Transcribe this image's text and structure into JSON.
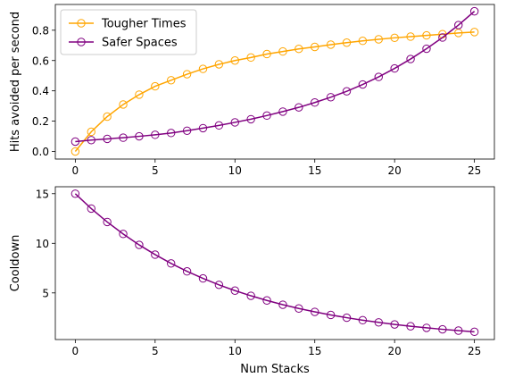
{
  "chart_data": [
    {
      "type": "line",
      "ylabel": "Hits avoided per second",
      "xlabel": "",
      "x": [
        0,
        1,
        2,
        3,
        4,
        5,
        6,
        7,
        8,
        9,
        10,
        11,
        12,
        13,
        14,
        15,
        16,
        17,
        18,
        19,
        20,
        21,
        22,
        23,
        24,
        25
      ],
      "xlim": [
        -1.25,
        26.25
      ],
      "ylim": [
        -0.05,
        0.97
      ],
      "xticks": [
        0,
        5,
        10,
        15,
        20,
        25
      ],
      "yticks": [
        0.0,
        0.2,
        0.4,
        0.6,
        0.8
      ],
      "ytick_labels": [
        "0.0",
        "0.2",
        "0.4",
        "0.6",
        "0.8"
      ],
      "legend": "top-left",
      "grid": false,
      "series": [
        {
          "name": "Tougher Times",
          "color": "#ffa500",
          "marker": "hollow-circle",
          "values": [
            0.0,
            0.13,
            0.23,
            0.31,
            0.375,
            0.43,
            0.47,
            0.51,
            0.545,
            0.575,
            0.6,
            0.62,
            0.643,
            0.66,
            0.677,
            0.69,
            0.705,
            0.718,
            0.73,
            0.74,
            0.75,
            0.758,
            0.766,
            0.774,
            0.782,
            0.788
          ]
        },
        {
          "name": "Safer Spaces",
          "color": "#800080",
          "marker": "hollow-circle",
          "values": [
            0.065,
            0.075,
            0.083,
            0.091,
            0.1,
            0.11,
            0.122,
            0.137,
            0.154,
            0.172,
            0.192,
            0.213,
            0.237,
            0.263,
            0.291,
            0.323,
            0.358,
            0.397,
            0.442,
            0.492,
            0.548,
            0.61,
            0.678,
            0.752,
            0.834,
            0.925
          ]
        }
      ]
    },
    {
      "type": "line",
      "ylabel": "Cooldown",
      "xlabel": "Num Stacks",
      "x": [
        0,
        1,
        2,
        3,
        4,
        5,
        6,
        7,
        8,
        9,
        10,
        11,
        12,
        13,
        14,
        15,
        16,
        17,
        18,
        19,
        20,
        21,
        22,
        23,
        24,
        25
      ],
      "xlim": [
        -1.25,
        26.25
      ],
      "ylim": [
        0.3,
        15.7
      ],
      "xticks": [
        0,
        5,
        10,
        15,
        20,
        25
      ],
      "yticks": [
        5,
        10,
        15
      ],
      "ytick_labels": [
        "5",
        "10",
        "15"
      ],
      "legend": "none",
      "grid": false,
      "series": [
        {
          "name": "",
          "color": "#800080",
          "marker": "hollow-circle",
          "values": [
            15.0,
            13.5,
            12.15,
            10.94,
            9.84,
            8.86,
            7.97,
            7.17,
            6.46,
            5.81,
            5.23,
            4.71,
            4.24,
            3.81,
            3.43,
            3.09,
            2.78,
            2.5,
            2.25,
            2.03,
            1.82,
            1.64,
            1.48,
            1.33,
            1.2,
            1.08
          ]
        }
      ]
    }
  ]
}
